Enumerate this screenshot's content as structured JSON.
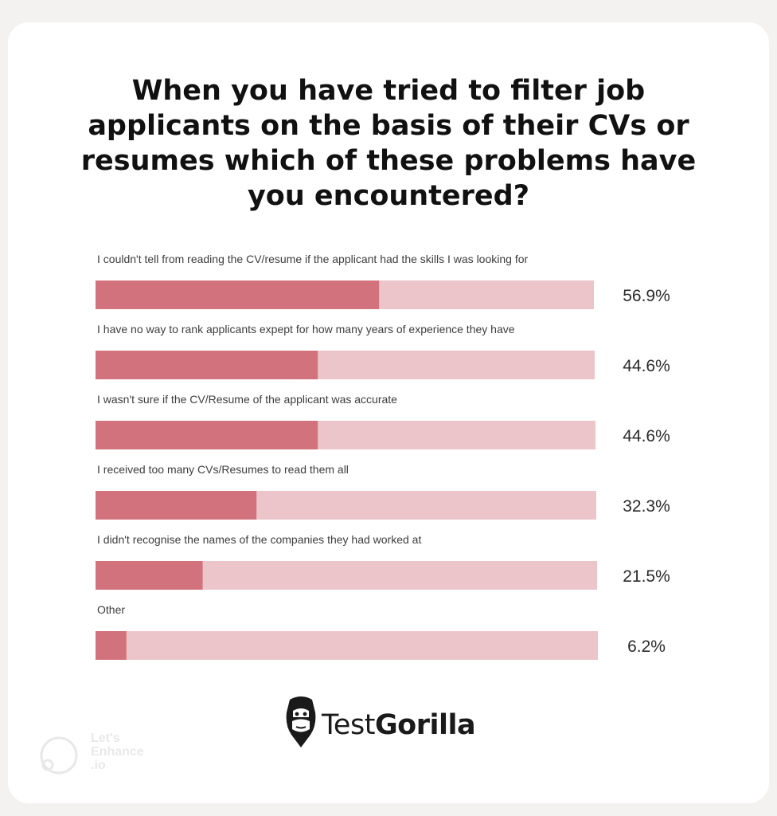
{
  "title": "When you have tried to filter job applicants on the basis of their CVs or resumes which of these problems have you encountered?",
  "colors": {
    "bar_fill": "#d2727c",
    "bar_track": "#ecc5ca",
    "text": "#3d3d3d"
  },
  "chart_data": {
    "type": "bar",
    "orientation": "horizontal",
    "title": "When you have tried to filter job applicants on the basis of their CVs or resumes which of these problems have you encountered?",
    "categories": [
      "I couldn't tell from reading the CV/resume if the applicant had the skills I was looking for",
      "I have no way to rank applicants expept for how many years of experience they have",
      "I wasn't sure if the CV/Resume of the applicant was accurate",
      "I received too many CVs/Resumes to read them all",
      "I didn't recognise the names of the companies they had worked at",
      "Other"
    ],
    "values": [
      56.9,
      44.6,
      44.6,
      32.3,
      21.5,
      6.2
    ],
    "value_labels": [
      "56.9%",
      "44.6%",
      "44.6%",
      "32.3%",
      "21.5%",
      "6.2%"
    ],
    "xlim": [
      0,
      100
    ],
    "unit": "%",
    "grid": false,
    "legend": "none"
  },
  "logo": {
    "text_regular": "Test",
    "text_bold": "Gorilla",
    "icon": "gorilla-head-icon"
  },
  "watermark": {
    "text": "Let's\nEnhance\n.io",
    "icon": "circle-logo-icon"
  }
}
